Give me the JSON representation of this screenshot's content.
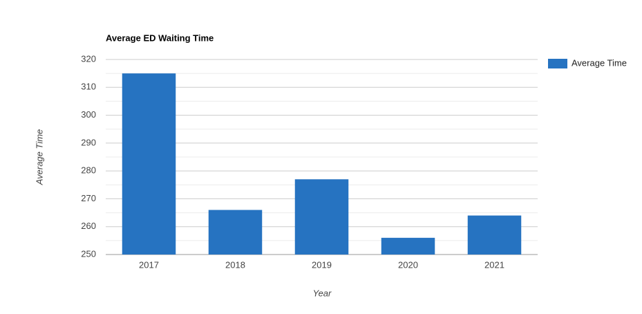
{
  "chart_data": {
    "type": "bar",
    "title": "Average ED Waiting Time",
    "x_label": "Year",
    "y_label": "Average Time",
    "categories": [
      "2017",
      "2018",
      "2019",
      "2020",
      "2021"
    ],
    "series": [
      {
        "name": "Average Time",
        "color": "#2673c1",
        "values": [
          315,
          266,
          277,
          256,
          264
        ]
      }
    ],
    "ylim": [
      250,
      320
    ],
    "yticks": [
      250,
      260,
      270,
      280,
      290,
      300,
      310,
      320
    ],
    "grid": true,
    "legend": "right"
  }
}
